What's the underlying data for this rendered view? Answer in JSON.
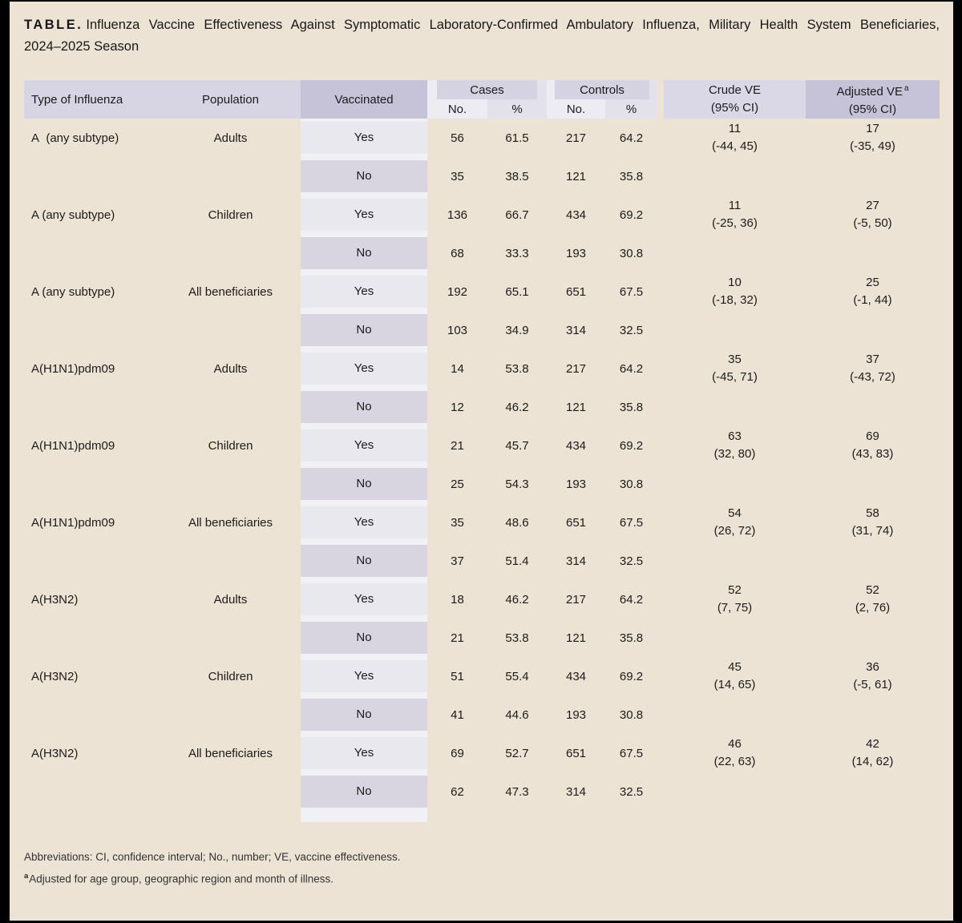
{
  "title": {
    "label": "TABLE.",
    "line1": "Influenza Vaccine Effectiveness Against Symptomatic Laboratory-Confirmed Ambulatory Influenza, Military Health System Beneficiaries,",
    "line2": "2024–2025 Season"
  },
  "table": {
    "headers": {
      "type": "Type of Influenza",
      "population": "Population",
      "vaccinated": "Vaccinated",
      "cases": "Cases",
      "controls": "Controls",
      "no_label_cases": "No.",
      "pct_label_cases": "%",
      "no_label_controls": "No.",
      "pct_label_controls": "%",
      "crude": "Crude VE",
      "crude_sub": "(95% CI)",
      "adjusted": "Adjusted VE",
      "adjusted_sup": "a",
      "adjusted_sub": "(95% CI)"
    },
    "yes_label": "Yes",
    "no_label": "No",
    "groups": [
      {
        "type": "A  (any subtype)",
        "population": "Adults",
        "yes": {
          "cases_no": "56",
          "cases_pct": "61.5",
          "controls_no": "217",
          "controls_pct": "64.2"
        },
        "no": {
          "cases_no": "35",
          "cases_pct": "38.5",
          "controls_no": "121",
          "controls_pct": "35.8"
        },
        "crude_ve": "11",
        "crude_ci": "(-44, 45)",
        "adj_ve": "17",
        "adj_ci": "(-35, 49)"
      },
      {
        "type": "A (any subtype)",
        "population": "Children",
        "yes": {
          "cases_no": "136",
          "cases_pct": "66.7",
          "controls_no": "434",
          "controls_pct": "69.2"
        },
        "no": {
          "cases_no": "68",
          "cases_pct": "33.3",
          "controls_no": "193",
          "controls_pct": "30.8"
        },
        "crude_ve": "11",
        "crude_ci": "(-25, 36)",
        "adj_ve": "27",
        "adj_ci": "(-5, 50)"
      },
      {
        "type": "A (any subtype)",
        "population": "All beneficiaries",
        "yes": {
          "cases_no": "192",
          "cases_pct": "65.1",
          "controls_no": "651",
          "controls_pct": "67.5"
        },
        "no": {
          "cases_no": "103",
          "cases_pct": "34.9",
          "controls_no": "314",
          "controls_pct": "32.5"
        },
        "crude_ve": "10",
        "crude_ci": "(-18, 32)",
        "adj_ve": "25",
        "adj_ci": "(-1, 44)"
      },
      {
        "type": "A(H1N1)pdm09",
        "population": "Adults",
        "yes": {
          "cases_no": "14",
          "cases_pct": "53.8",
          "controls_no": "217",
          "controls_pct": "64.2"
        },
        "no": {
          "cases_no": "12",
          "cases_pct": "46.2",
          "controls_no": "121",
          "controls_pct": "35.8"
        },
        "crude_ve": "35",
        "crude_ci": "(-45, 71)",
        "adj_ve": "37",
        "adj_ci": "(-43, 72)"
      },
      {
        "type": "A(H1N1)pdm09",
        "population": "Children",
        "yes": {
          "cases_no": "21",
          "cases_pct": "45.7",
          "controls_no": "434",
          "controls_pct": "69.2"
        },
        "no": {
          "cases_no": "25",
          "cases_pct": "54.3",
          "controls_no": "193",
          "controls_pct": "30.8"
        },
        "crude_ve": "63",
        "crude_ci": "(32, 80)",
        "adj_ve": "69",
        "adj_ci": "(43, 83)"
      },
      {
        "type": "A(H1N1)pdm09",
        "population": "All beneficiaries",
        "yes": {
          "cases_no": "35",
          "cases_pct": "48.6",
          "controls_no": "651",
          "controls_pct": "67.5"
        },
        "no": {
          "cases_no": "37",
          "cases_pct": "51.4",
          "controls_no": "314",
          "controls_pct": "32.5"
        },
        "crude_ve": "54",
        "crude_ci": "(26, 72)",
        "adj_ve": "58",
        "adj_ci": "(31, 74)"
      },
      {
        "type": "A(H3N2)",
        "population": "Adults",
        "yes": {
          "cases_no": "18",
          "cases_pct": "46.2",
          "controls_no": "217",
          "controls_pct": "64.2"
        },
        "no": {
          "cases_no": "21",
          "cases_pct": "53.8",
          "controls_no": "121",
          "controls_pct": "35.8"
        },
        "crude_ve": "52",
        "crude_ci": "(7, 75)",
        "adj_ve": "52",
        "adj_ci": "(2, 76)"
      },
      {
        "type": "A(H3N2)",
        "population": "Children",
        "yes": {
          "cases_no": "51",
          "cases_pct": "55.4",
          "controls_no": "434",
          "controls_pct": "69.2"
        },
        "no": {
          "cases_no": "41",
          "cases_pct": "44.6",
          "controls_no": "193",
          "controls_pct": "30.8"
        },
        "crude_ve": "45",
        "crude_ci": "(14, 65)",
        "adj_ve": "36",
        "adj_ci": "(-5, 61)"
      },
      {
        "type": "A(H3N2)",
        "population": "All beneficiaries",
        "yes": {
          "cases_no": "69",
          "cases_pct": "52.7",
          "controls_no": "651",
          "controls_pct": "67.5"
        },
        "no": {
          "cases_no": "62",
          "cases_pct": "47.3",
          "controls_no": "314",
          "controls_pct": "32.5"
        },
        "crude_ve": "46",
        "crude_ci": "(22, 63)",
        "adj_ve": "42",
        "adj_ci": "(14, 62)"
      }
    ]
  },
  "footnotes": {
    "abbrev": "Abbreviations: CI, confidence interval; No., number; VE, vaccine effectiveness.",
    "a_sup": "a",
    "a_text": "Adjusted for age group, geographic region and month of illness."
  },
  "colors": {
    "page_background": "#ece3d4",
    "frame": "#000000",
    "header_light_lavender": "#d7d4e3",
    "header_dark_lavender": "#c6c3d9",
    "header_crude": "#dad7e6",
    "subheader_no": "#edecf3",
    "subheader_pct": "#e3e1e9",
    "yes_cell": "#e9e8ef",
    "no_cell": "#d8d5e0",
    "vaccinated_strip": "#f1f0f5",
    "text": "#1b1b1b"
  }
}
